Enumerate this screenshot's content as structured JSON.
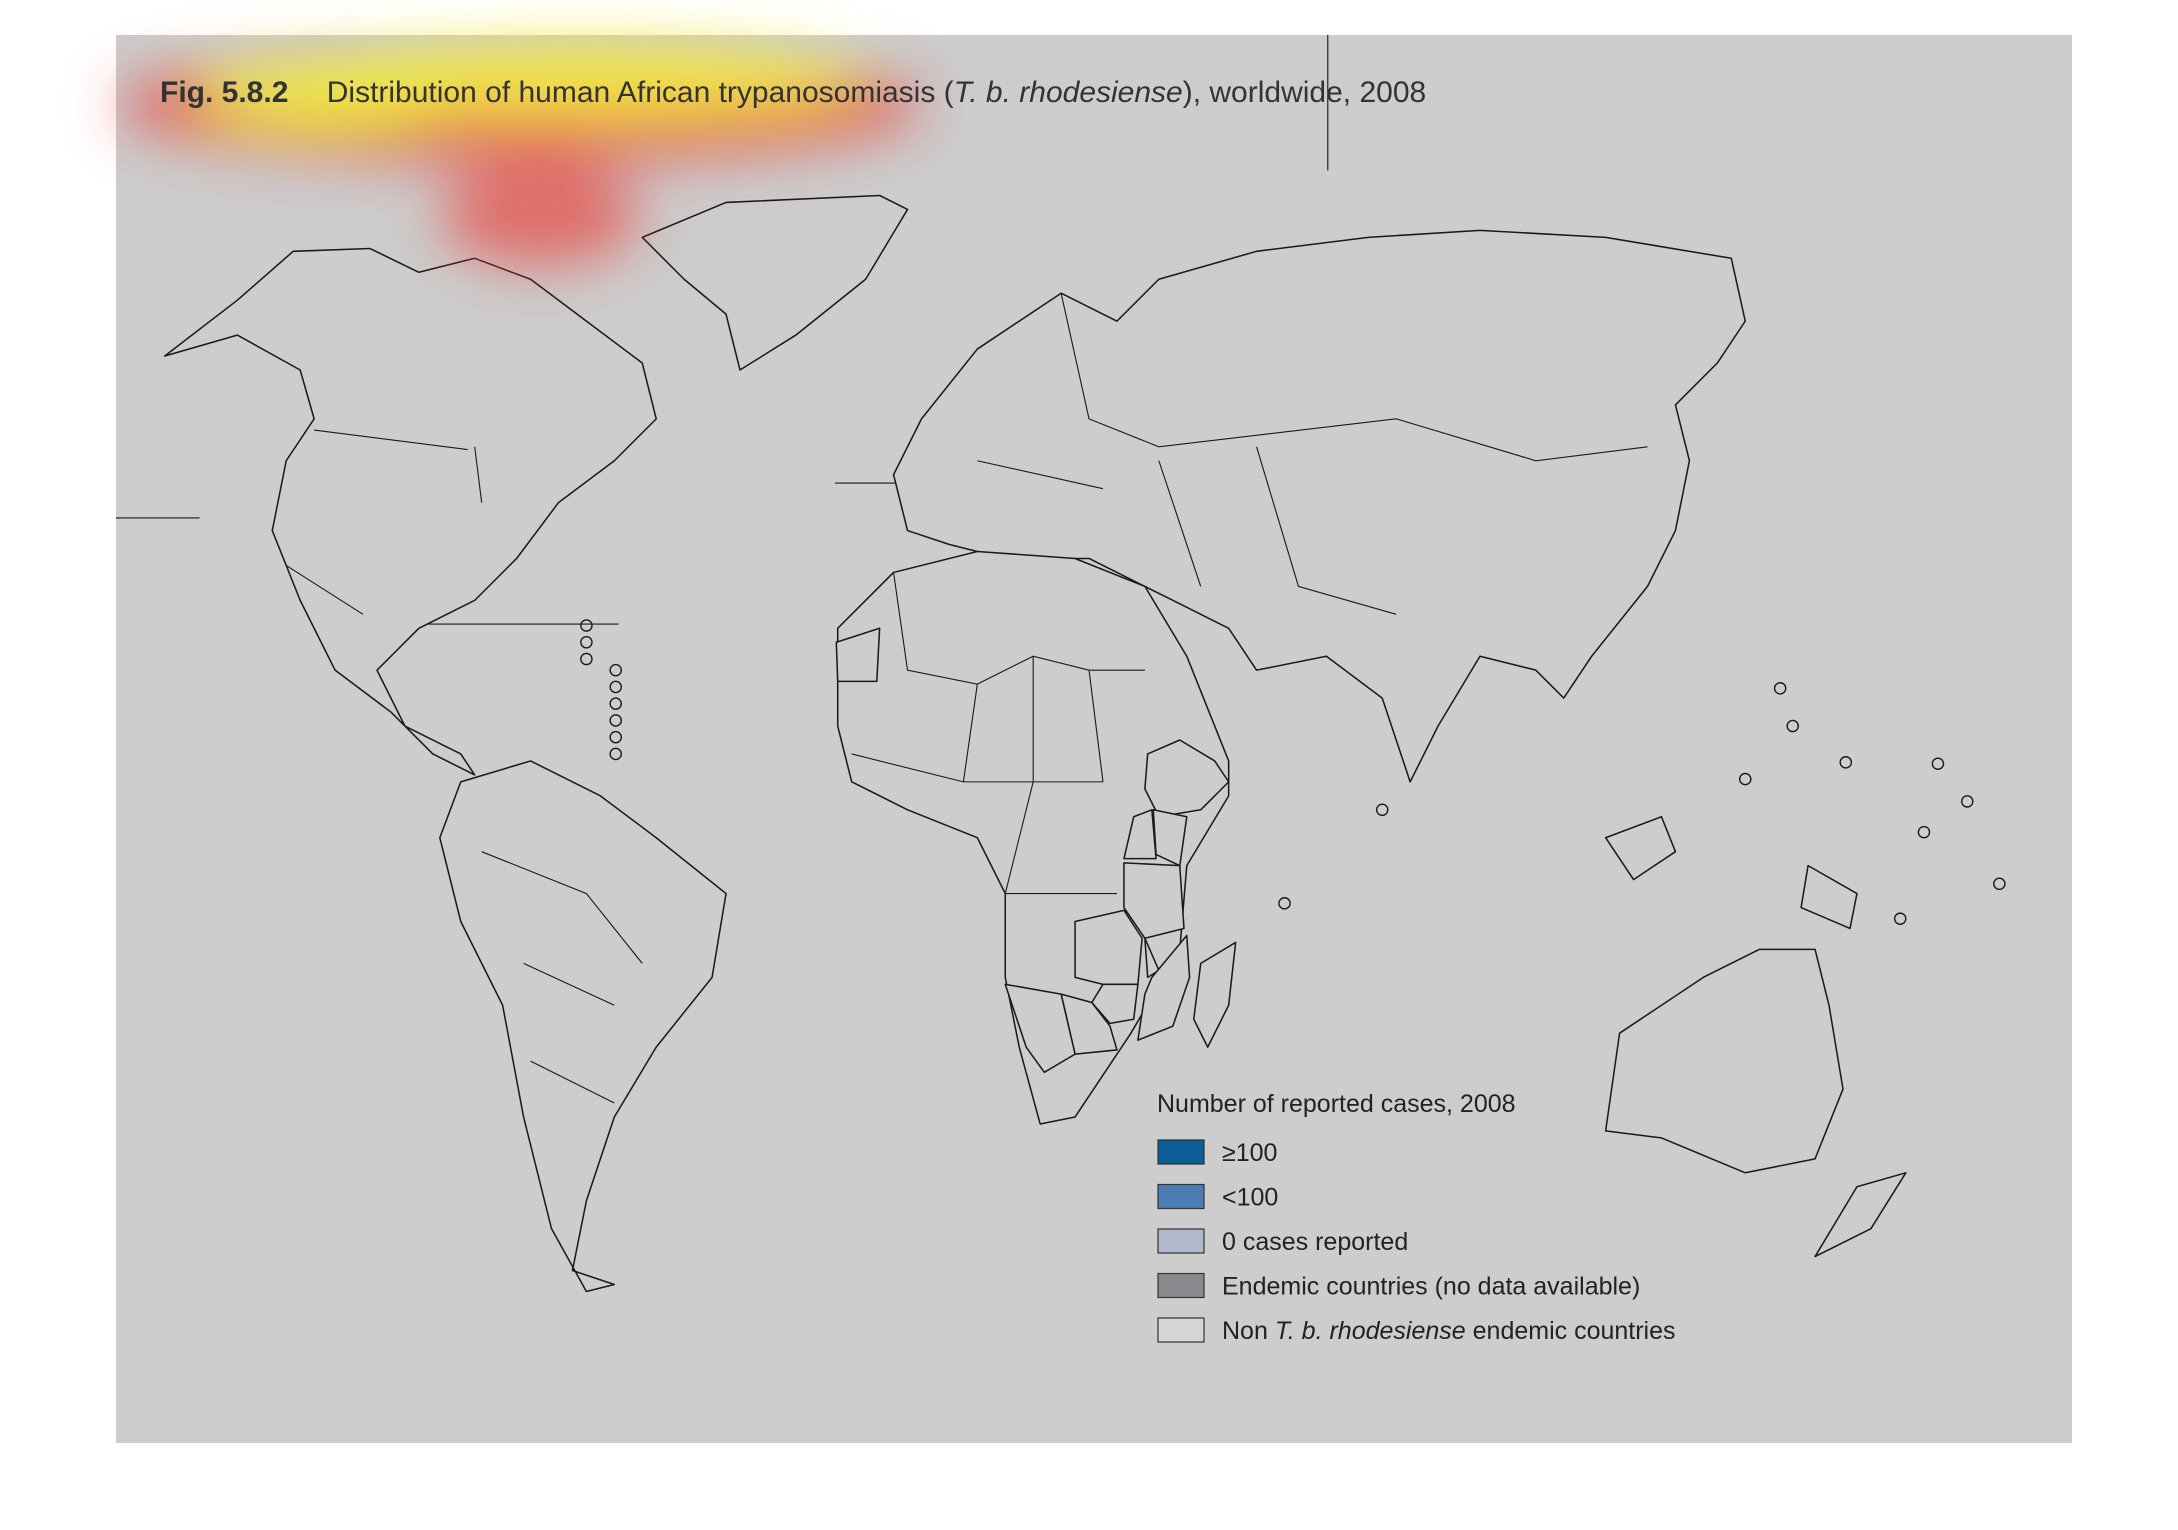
{
  "header": {
    "figure_number": "Fig. 5.8.2",
    "title_parts": [
      "Distribution of human African trypanosomiasis (",
      "T. b. rhodesiense",
      "), worldwide, 2008"
    ]
  },
  "legend": {
    "title": "Number of reported cases, 2008",
    "items": [
      {
        "label_parts": [
          "≥100"
        ],
        "color": "#0b5e98"
      },
      {
        "label_parts": [
          "<100"
        ],
        "color": "#4c7db2"
      },
      {
        "label_parts": [
          "0 cases reported"
        ],
        "color": "#b0b8cb"
      },
      {
        "label_parts": [
          "Endemic countries (no data available)"
        ],
        "color": "#88898d"
      },
      {
        "label_parts": [
          "Non ",
          "T. b. rhodesiense",
          " endemic countries"
        ],
        "color": "#d6d6d6"
      }
    ]
  }
}
